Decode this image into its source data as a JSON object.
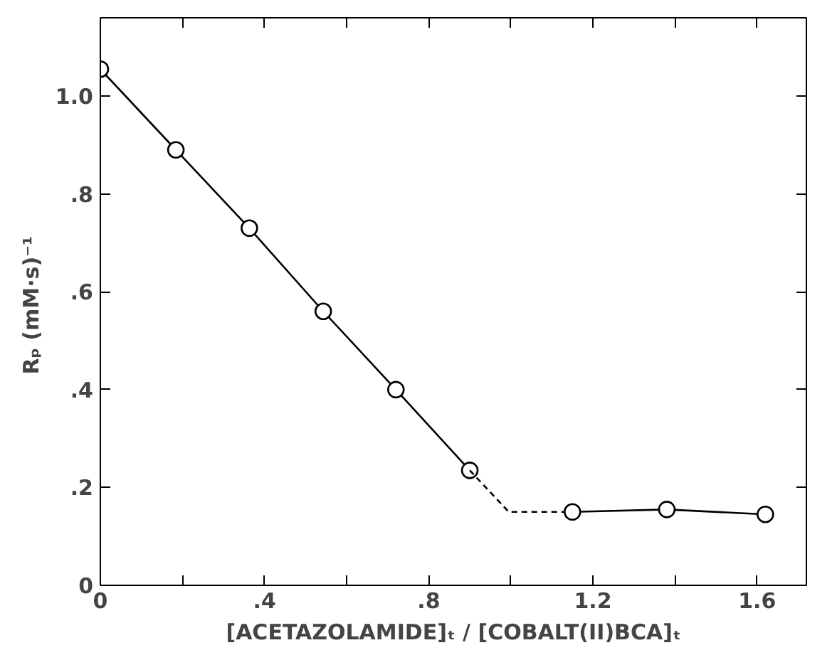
{
  "chart_data": {
    "type": "line",
    "xlabel": "[ACETAZOLAMIDE]ₜ / [COBALT(II)BCA]ₜ",
    "ylabel": "Rₚ  (mM·s)⁻¹",
    "xlim": [
      0,
      1.72
    ],
    "ylim": [
      0,
      1.16
    ],
    "xticks": [
      0,
      {
        "value": 0.2,
        "label": null
      },
      {
        "value": 0.4,
        "label": ".4"
      },
      {
        "value": 0.6,
        "label": null
      },
      {
        "value": 0.8,
        "label": ".8"
      },
      {
        "value": 1.0,
        "label": null
      },
      {
        "value": 1.2,
        "label": "1.2"
      },
      {
        "value": 1.4,
        "label": null
      },
      {
        "value": 1.6,
        "label": "1.6"
      }
    ],
    "yticks": [
      0,
      {
        "value": 0.2,
        "label": ".2"
      },
      {
        "value": 0.4,
        "label": ".4"
      },
      {
        "value": 0.6,
        "label": ".6"
      },
      {
        "value": 0.8,
        "label": ".8"
      },
      {
        "value": 1.0,
        "label": "1.0"
      }
    ],
    "grid": false,
    "series": [
      {
        "color": "#000000",
        "marker": "circle",
        "line_style": "solid",
        "x": [
          0,
          0.184,
          0.363,
          0.543,
          0.72,
          0.9
        ],
        "values": [
          1.055,
          0.89,
          0.73,
          0.56,
          0.4,
          0.235
        ]
      },
      {
        "color": "#000000",
        "marker": "none",
        "line_style": "dashed",
        "x": [
          0.9,
          0.995,
          1.15
        ],
        "values": [
          0.235,
          0.15,
          0.15
        ]
      },
      {
        "color": "#000000",
        "marker": "circle",
        "line_style": "solid",
        "x": [
          1.15,
          1.38,
          1.62
        ],
        "values": [
          0.15,
          0.155,
          0.145
        ]
      }
    ]
  }
}
